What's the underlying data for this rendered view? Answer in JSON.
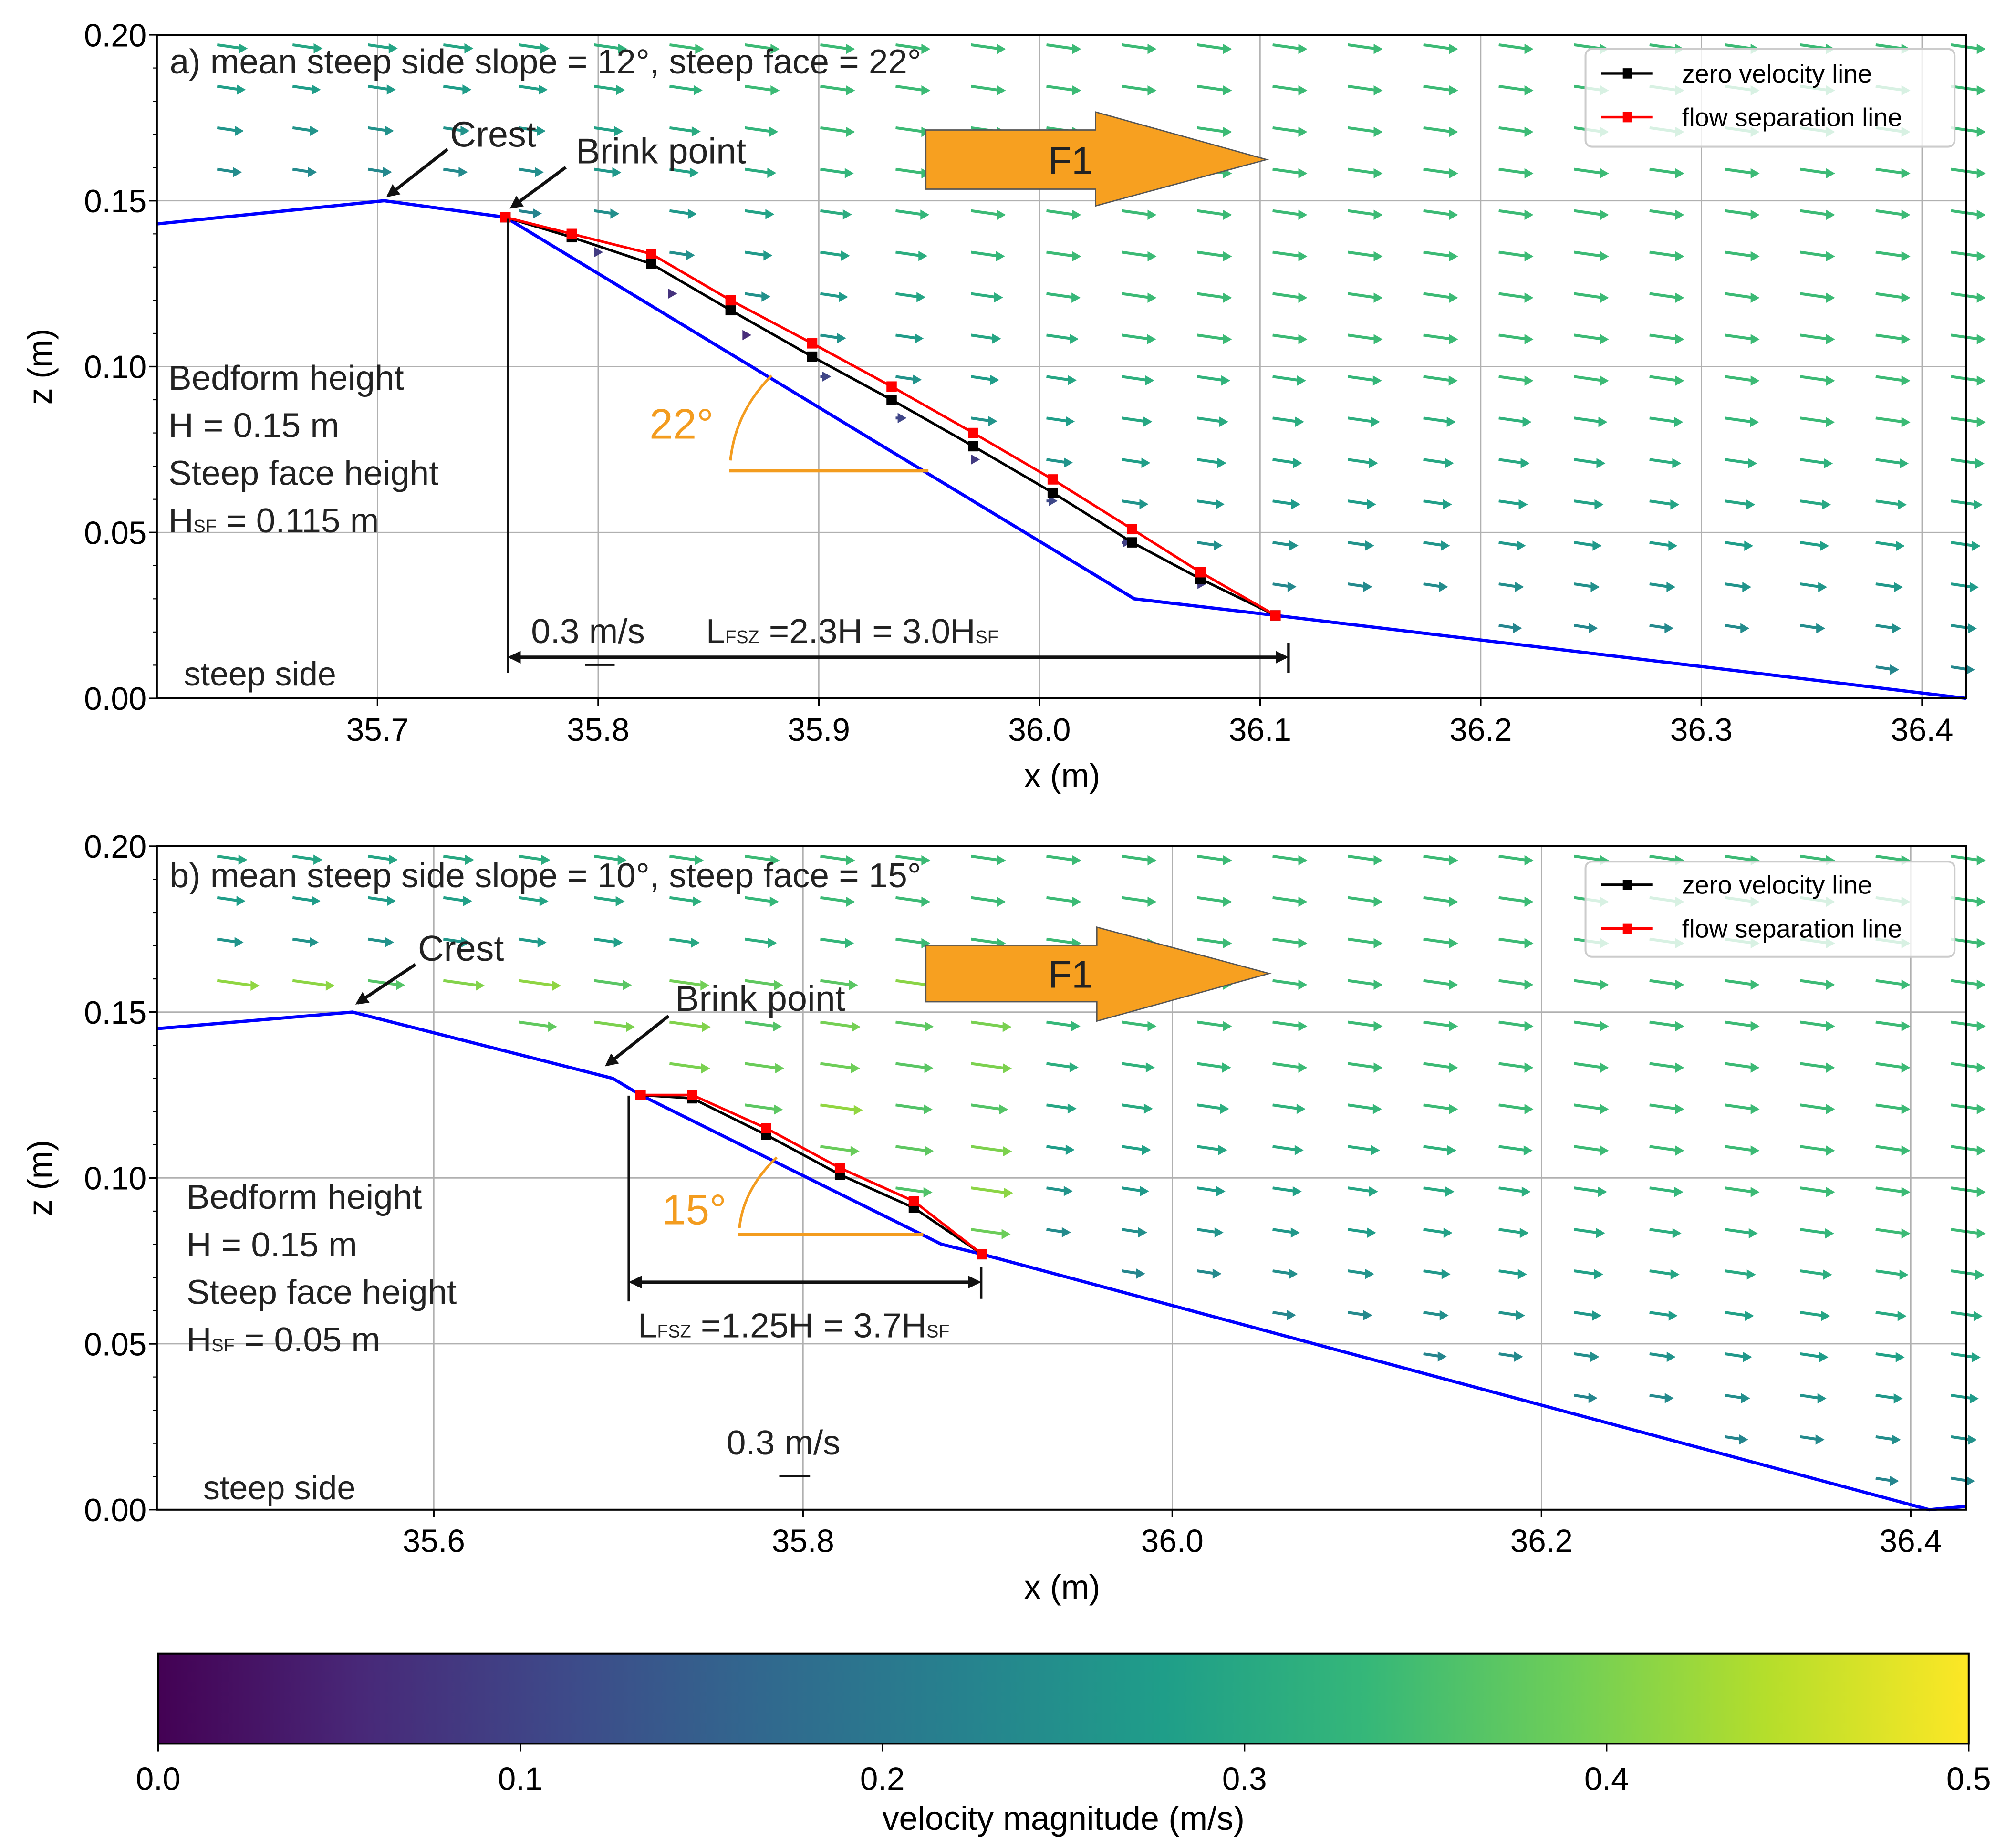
{
  "chart_data": [
    {
      "type": "quiver",
      "panel": "a",
      "title": "a) mean steep side slope = 12°, steep face = 22°",
      "xlabel": "x (m)",
      "ylabel": "z (m)",
      "xlim": [
        35.6,
        36.42
      ],
      "ylim": [
        0.0,
        0.2
      ],
      "xticks": [
        "35.7",
        "35.8",
        "35.9",
        "36.0",
        "36.1",
        "36.2",
        "36.3",
        "36.4"
      ],
      "xtick_values": [
        35.7,
        35.8,
        35.9,
        36.0,
        36.1,
        36.2,
        36.3,
        36.4
      ],
      "yticks": [
        "0.00",
        "0.05",
        "0.10",
        "0.15",
        "0.20"
      ],
      "ytick_values": [
        0.0,
        0.05,
        0.1,
        0.15,
        0.2
      ],
      "grid": true,
      "legend": {
        "position": "top-right",
        "entries": [
          "zero velocity line",
          "flow separation line"
        ]
      },
      "bed": {
        "x": [
          35.6,
          35.703,
          35.758,
          36.043,
          36.107,
          36.42
        ],
        "z": [
          0.143,
          0.15,
          0.145,
          0.03,
          0.025,
          0.0
        ]
      },
      "zero_velocity_line": {
        "x": [
          35.758,
          35.788,
          35.824,
          35.86,
          35.897,
          35.933,
          35.97,
          36.006,
          36.042,
          36.073,
          36.107
        ],
        "z": [
          0.145,
          0.139,
          0.131,
          0.117,
          0.103,
          0.09,
          0.076,
          0.062,
          0.047,
          0.036,
          0.025
        ]
      },
      "flow_separation_line": {
        "x": [
          35.758,
          35.788,
          35.824,
          35.86,
          35.897,
          35.933,
          35.97,
          36.006,
          36.042,
          36.073,
          36.107
        ],
        "z": [
          0.145,
          0.14,
          0.134,
          0.12,
          0.107,
          0.094,
          0.08,
          0.066,
          0.051,
          0.038,
          0.025
        ]
      },
      "annotations": {
        "crest": "Crest",
        "brink": "Brink point",
        "angle": "22°",
        "bedform_lines": [
          "Bedform height",
          "H = 0.15 m",
          "Steep face height"
        ],
        "hsf_main": "H",
        "hsf_sub": "SF",
        "hsf_value": " = 0.115 m",
        "scale": "0.3 m/s",
        "lfsz_L": "L",
        "lfsz_sub": "FSZ",
        "lfsz_mid": " =2.3H = 3.0H",
        "lfsz_sf": "SF",
        "steep_side": "steep side",
        "flow": "F1"
      }
    },
    {
      "type": "quiver",
      "panel": "b",
      "title": "b) mean steep side slope = 10°, steep face = 15°",
      "xlabel": "x (m)",
      "ylabel": "z (m)",
      "xlim": [
        35.45,
        36.43
      ],
      "ylim": [
        0.0,
        0.2
      ],
      "xticks": [
        "35.6",
        "35.8",
        "36.0",
        "36.2",
        "36.4"
      ],
      "xtick_values": [
        35.6,
        35.8,
        36.0,
        36.2,
        36.4
      ],
      "yticks": [
        "0.00",
        "0.05",
        "0.10",
        "0.15",
        "0.20"
      ],
      "ytick_values": [
        0.0,
        0.05,
        0.1,
        0.15,
        0.2
      ],
      "grid": true,
      "legend": {
        "position": "top-right",
        "entries": [
          "zero velocity line",
          "flow separation line"
        ]
      },
      "bed": {
        "x": [
          35.45,
          35.556,
          35.697,
          35.712,
          35.875,
          35.897,
          36.41,
          36.43
        ],
        "z": [
          0.145,
          0.15,
          0.13,
          0.125,
          0.08,
          0.077,
          0.0,
          0.001
        ]
      },
      "zero_velocity_line": {
        "x": [
          35.712,
          35.74,
          35.78,
          35.82,
          35.86,
          35.897
        ],
        "z": [
          0.125,
          0.124,
          0.113,
          0.101,
          0.091,
          0.077
        ]
      },
      "flow_separation_line": {
        "x": [
          35.712,
          35.74,
          35.78,
          35.82,
          35.86,
          35.897
        ],
        "z": [
          0.125,
          0.125,
          0.115,
          0.103,
          0.093,
          0.077
        ]
      },
      "annotations": {
        "crest": "Crest",
        "brink": "Brink point",
        "angle": "15°",
        "bedform_lines": [
          "Bedform height",
          "H = 0.15 m",
          "Steep face height"
        ],
        "hsf_main": "H",
        "hsf_sub": "SF",
        "hsf_value": " = 0.05 m",
        "scale": "0.3 m/s",
        "lfsz_L": "L",
        "lfsz_sub": "FSZ",
        "lfsz_mid": " =1.25H = 3.7H",
        "lfsz_sf": "SF",
        "steep_side": "steep side",
        "flow": "F1"
      }
    }
  ],
  "colorbar": {
    "label": "velocity magnitude (m/s)",
    "colormap": "viridis",
    "range": [
      0.0,
      0.5
    ],
    "ticks": [
      "0.0",
      "0.1",
      "0.2",
      "0.3",
      "0.4",
      "0.5"
    ],
    "tick_values": [
      0.0,
      0.1,
      0.2,
      0.3,
      0.4,
      0.5
    ],
    "stops": [
      "#440154",
      "#482878",
      "#3e4989",
      "#31688e",
      "#26828e",
      "#1f9e89",
      "#35b779",
      "#6ece58",
      "#b5de2b",
      "#fde725"
    ]
  },
  "colors": {
    "bed": "#0000ff",
    "zero_velocity": "#000000",
    "flow_separation": "#ff0000",
    "angle": "#f39c1f",
    "flow_arrow": "#f7a020"
  }
}
